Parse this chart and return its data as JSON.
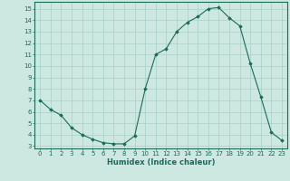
{
  "x": [
    0,
    1,
    2,
    3,
    4,
    5,
    6,
    7,
    8,
    9,
    10,
    11,
    12,
    13,
    14,
    15,
    16,
    17,
    18,
    19,
    20,
    21,
    22,
    23
  ],
  "y": [
    7.0,
    6.2,
    5.7,
    4.6,
    4.0,
    3.6,
    3.3,
    3.2,
    3.2,
    3.9,
    8.0,
    11.0,
    11.5,
    13.0,
    13.8,
    14.3,
    15.0,
    15.1,
    14.2,
    13.5,
    10.2,
    7.3,
    4.2,
    3.5
  ],
  "xlabel": "Humidex (Indice chaleur)",
  "xlim": [
    -0.5,
    23.5
  ],
  "ylim": [
    2.8,
    15.6
  ],
  "yticks": [
    3,
    4,
    5,
    6,
    7,
    8,
    9,
    10,
    11,
    12,
    13,
    14,
    15
  ],
  "xticks": [
    0,
    1,
    2,
    3,
    4,
    5,
    6,
    7,
    8,
    9,
    10,
    11,
    12,
    13,
    14,
    15,
    16,
    17,
    18,
    19,
    20,
    21,
    22,
    23
  ],
  "line_color": "#1a6b5a",
  "marker": "D",
  "marker_size": 1.8,
  "bg_color": "#cce8e0",
  "grid_color": "#a8d0c8",
  "axes_color": "#1a6b5a",
  "tick_fontsize": 5.0,
  "xlabel_fontsize": 6.0
}
